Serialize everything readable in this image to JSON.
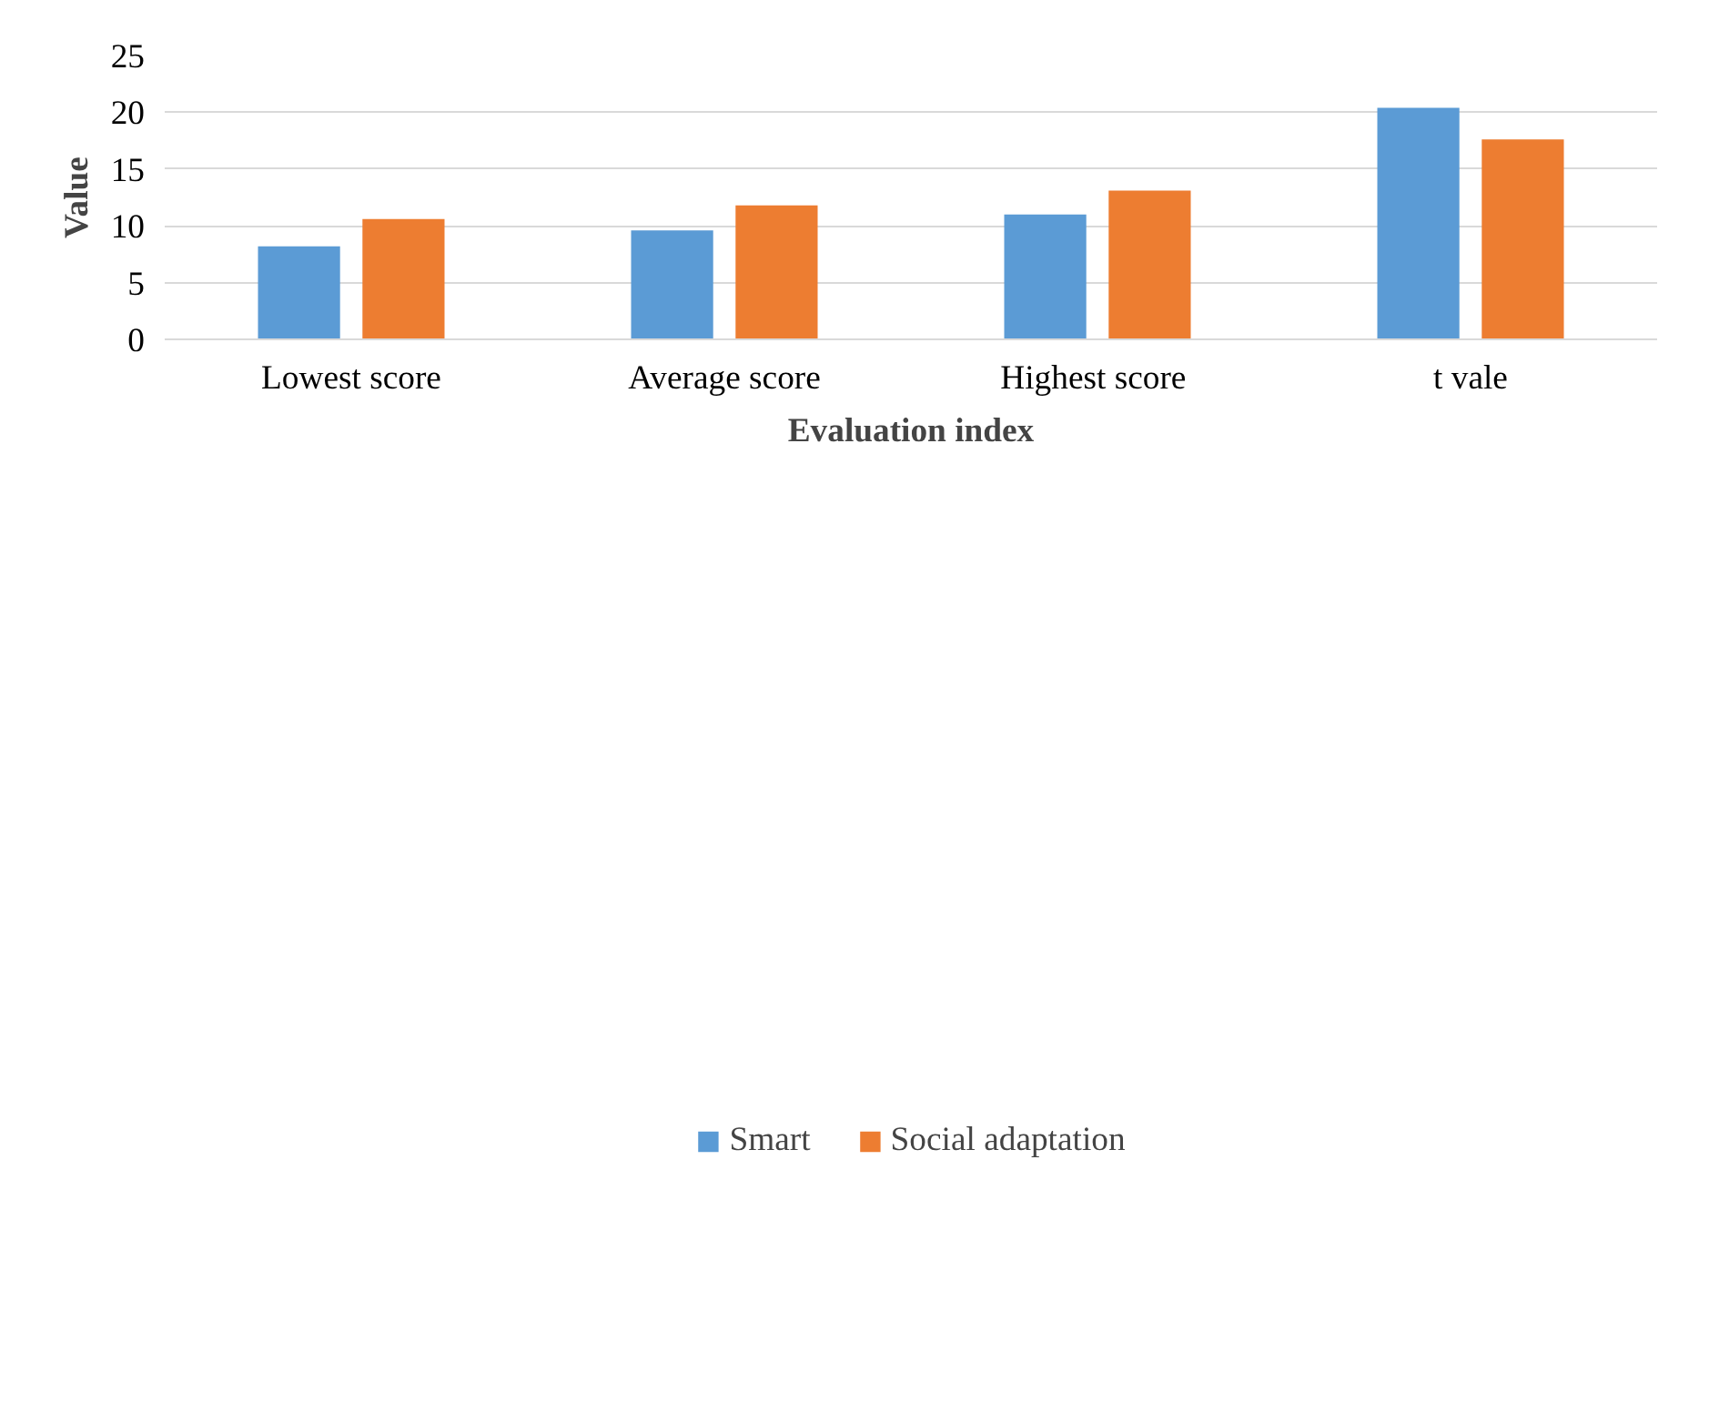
{
  "chart_data": {
    "type": "bar",
    "xlabel": "Evaluation index",
    "ylabel": "Value",
    "categories": [
      "Lowest score",
      "Average score",
      "Highest  score",
      "t vale"
    ],
    "series": [
      {
        "name": "Smart",
        "color": "#5b9bd5",
        "values": [
          8.2,
          9.6,
          11.0,
          20.4
        ]
      },
      {
        "name": "Social adaptation",
        "color": "#ed7d31",
        "values": [
          10.6,
          11.8,
          13.1,
          17.6
        ]
      }
    ],
    "ylim": [
      0,
      25
    ],
    "yticks": [
      0,
      5,
      10,
      15,
      20,
      25
    ],
    "grid": "y",
    "legend": "bottom"
  }
}
